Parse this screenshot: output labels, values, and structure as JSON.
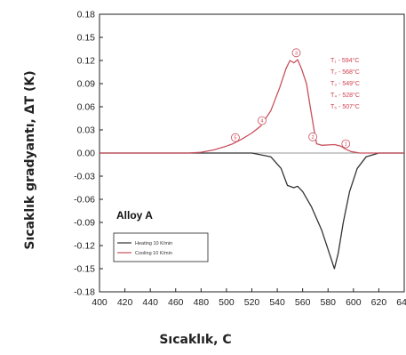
{
  "chart_data": {
    "type": "line",
    "xlabel": "Sıcaklık, C",
    "ylabel": "Sıcaklık gradyantı, ΔT (K)",
    "xlim": [
      400,
      640
    ],
    "ylim": [
      -0.18,
      0.18
    ],
    "x_ticks": [
      400,
      420,
      440,
      460,
      480,
      500,
      520,
      540,
      560,
      580,
      600,
      620,
      640
    ],
    "y_ticks": [
      0.18,
      0.15,
      0.12,
      0.09,
      0.06,
      0.03,
      0.0,
      -0.03,
      -0.06,
      -0.09,
      -0.12,
      -0.15,
      -0.18
    ],
    "y_tick_labels": [
      "0.18",
      "0.15",
      "0.12",
      "0.09",
      "0.06",
      "0.03",
      "0.00",
      "-0.03",
      "-0.06",
      "-0.09",
      "-0.12",
      "-0.15",
      "-0.18"
    ],
    "panel_label": "Alloy A",
    "series": [
      {
        "name": "Heating 10 K/min",
        "color": "#333333",
        "points": [
          [
            400,
            0
          ],
          [
            480,
            0
          ],
          [
            520,
            0
          ],
          [
            535,
            -0.005
          ],
          [
            543,
            -0.02
          ],
          [
            548,
            -0.042
          ],
          [
            553,
            -0.045
          ],
          [
            556,
            -0.043
          ],
          [
            560,
            -0.05
          ],
          [
            567,
            -0.07
          ],
          [
            575,
            -0.1
          ],
          [
            581,
            -0.13
          ],
          [
            585,
            -0.15
          ],
          [
            588,
            -0.13
          ],
          [
            592,
            -0.09
          ],
          [
            597,
            -0.05
          ],
          [
            603,
            -0.02
          ],
          [
            610,
            -0.005
          ],
          [
            620,
            0
          ],
          [
            640,
            0
          ]
        ]
      },
      {
        "name": "Cooling 10 K/min",
        "color": "#c8505e",
        "points": [
          [
            400,
            0
          ],
          [
            470,
            0
          ],
          [
            480,
            0.001
          ],
          [
            490,
            0.004
          ],
          [
            500,
            0.009
          ],
          [
            505,
            0.012
          ],
          [
            512,
            0.018
          ],
          [
            520,
            0.026
          ],
          [
            527,
            0.035
          ],
          [
            535,
            0.055
          ],
          [
            542,
            0.085
          ],
          [
            547,
            0.11
          ],
          [
            550,
            0.12
          ],
          [
            553,
            0.117
          ],
          [
            556,
            0.121
          ],
          [
            559,
            0.11
          ],
          [
            563,
            0.09
          ],
          [
            566,
            0.06
          ],
          [
            569,
            0.03
          ],
          [
            571,
            0.012
          ],
          [
            575,
            0.01
          ],
          [
            585,
            0.011
          ],
          [
            590,
            0.009
          ],
          [
            594,
            0.005
          ],
          [
            598,
            0.002
          ],
          [
            605,
            0
          ],
          [
            640,
            0
          ]
        ]
      }
    ],
    "legend": {
      "placement": "lower-left",
      "entries": [
        {
          "label": "Heating 10 K/min",
          "color": "#333333"
        },
        {
          "label": "Cooling 10 K/min",
          "color": "#c8505e"
        }
      ]
    },
    "temperature_annotations": [
      "T₁ - 594°C",
      "T₂ - 568°C",
      "T₃ - 549°C",
      "T₄ - 528°C",
      "T₅ - 507°C"
    ],
    "peak_markers": [
      {
        "label": "1",
        "x": 594,
        "y": 0.012
      },
      {
        "label": "2",
        "x": 568,
        "y": 0.021
      },
      {
        "label": "3",
        "x": 555,
        "y": 0.13
      },
      {
        "label": "4",
        "x": 528,
        "y": 0.042
      },
      {
        "label": "5",
        "x": 507,
        "y": 0.02
      }
    ],
    "grid": false
  }
}
